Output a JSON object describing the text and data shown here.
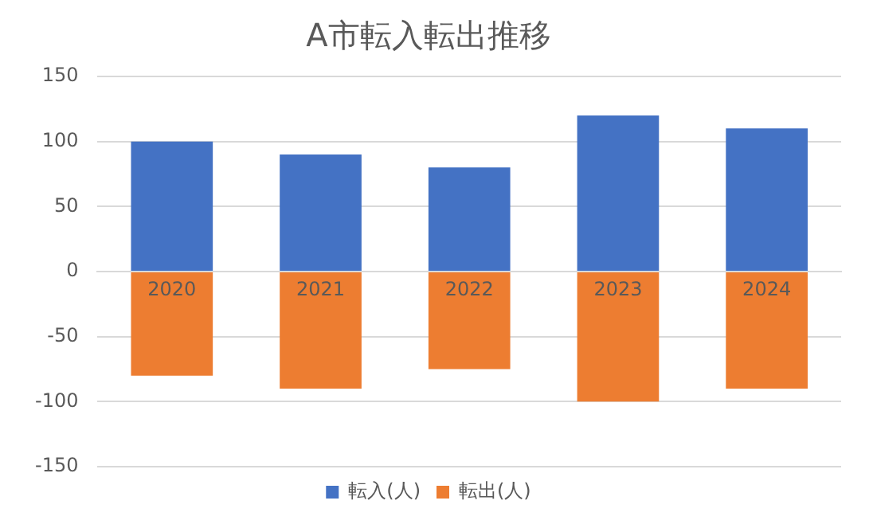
{
  "chart_data": {
    "type": "bar",
    "title": "A市転入転出推移",
    "categories": [
      "2020",
      "2021",
      "2022",
      "2023",
      "2024"
    ],
    "stacked": true,
    "series": [
      {
        "name": "転入(人)",
        "color": "#4472c4",
        "values": [
          100,
          90,
          80,
          120,
          110
        ]
      },
      {
        "name": "転出(人)",
        "color": "#ed7d31",
        "values": [
          -80,
          -90,
          -75,
          -100,
          -90
        ]
      }
    ],
    "ylim": [
      -150,
      150
    ],
    "yticks": [
      -150,
      -100,
      -50,
      0,
      50,
      100,
      150
    ],
    "grid": "y",
    "legend": "bottom"
  }
}
